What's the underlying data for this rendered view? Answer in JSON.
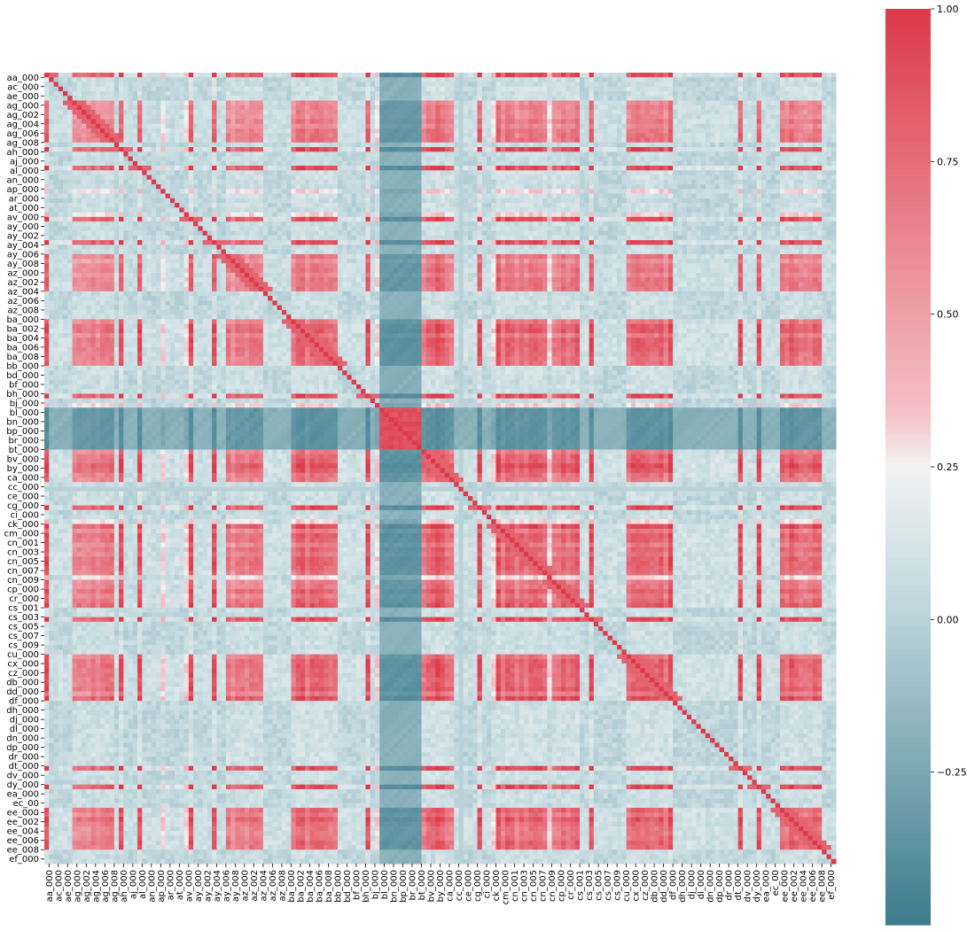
{
  "chart_data": {
    "type": "heatmap",
    "title": "",
    "xlabel": "",
    "ylabel": "",
    "description_free": true,
    "matrix_kind": "correlation",
    "n_features": 170,
    "row_tick_labels": [
      "aa_000",
      "ac_000",
      "ae_000",
      "ag_000",
      "ag_002",
      "ag_004",
      "ag_006",
      "ag_008",
      "ah_000",
      "aj_000",
      "al_000",
      "an_000",
      "ap_000",
      "ar_000",
      "at_000",
      "av_000",
      "ay_000",
      "ay_002",
      "ay_004",
      "ay_006",
      "ay_008",
      "az_000",
      "az_002",
      "az_004",
      "az_006",
      "az_008",
      "ba_000",
      "ba_002",
      "ba_004",
      "ba_006",
      "ba_008",
      "bb_000",
      "bd_000",
      "bf_000",
      "bh_000",
      "bj_000",
      "bl_000",
      "bn_000",
      "bp_000",
      "br_000",
      "bt_000",
      "bv_000",
      "by_000",
      "ca_000",
      "cc_000",
      "ce_000",
      "cg_000",
      "ci_000",
      "ck_000",
      "cm_000",
      "cn_001",
      "cn_003",
      "cn_005",
      "cn_007",
      "cn_009",
      "cp_000",
      "cr_000",
      "cs_001",
      "cs_003",
      "cs_005",
      "cs_007",
      "cs_009",
      "cu_000",
      "cx_000",
      "cz_000",
      "db_000",
      "dd_000",
      "df_000",
      "dh_000",
      "dj_000",
      "dl_000",
      "dn_000",
      "dp_000",
      "dr_000",
      "dt_000",
      "dv_000",
      "dy_000",
      "ea_000",
      "ec_00",
      "ee_000",
      "ee_002",
      "ee_004",
      "ee_006",
      "ee_008",
      "ef_000"
    ],
    "col_tick_labels": [
      "aa_000",
      "ac_000",
      "ae_000",
      "ag_000",
      "ag_002",
      "ag_004",
      "ag_006",
      "ag_008",
      "ah_000",
      "aj_000",
      "al_000",
      "an_000",
      "ap_000",
      "ar_000",
      "at_000",
      "av_000",
      "ay_000",
      "ay_002",
      "ay_004",
      "ay_006",
      "ay_008",
      "az_000",
      "az_002",
      "az_004",
      "az_006",
      "az_008",
      "ba_000",
      "ba_002",
      "ba_004",
      "ba_006",
      "ba_008",
      "bb_000",
      "bd_000",
      "bf_000",
      "bh_000",
      "bj_000",
      "bl_000",
      "bn_000",
      "bp_000",
      "br_000",
      "bt_000",
      "bv_000",
      "by_000",
      "ca_000",
      "cc_000",
      "ce_000",
      "cg_000",
      "ci_000",
      "ck_000",
      "cm_000",
      "cn_001",
      "cn_003",
      "cn_005",
      "cn_007",
      "cn_009",
      "cp_000",
      "cr_000",
      "cs_001",
      "cs_003",
      "cs_005",
      "cs_007",
      "cs_009",
      "cu_000",
      "cx_000",
      "cz_000",
      "db_000",
      "dd_000",
      "df_000",
      "dh_000",
      "dj_000",
      "dl_000",
      "dn_000",
      "dp_000",
      "dr_000",
      "dt_000",
      "dv_000",
      "dy_000",
      "ea_000",
      "ec_00",
      "ee_000",
      "ee_002",
      "ee_004",
      "ee_006",
      "ee_008",
      "ef_000"
    ],
    "colorbar": {
      "ticks": [
        1.0,
        0.75,
        0.5,
        0.25,
        0.0,
        -0.25
      ],
      "tick_labels": [
        "1.00",
        "0.75",
        "0.50",
        "0.25",
        "0.00",
        "−0.25"
      ],
      "vmin": -0.5,
      "vmax": 1.0
    },
    "colormap": {
      "low": "#3d7b8c",
      "mid_low": "#c9dde2",
      "center": "#f2f2f2",
      "mid_high": "#f4c0c6",
      "high": "#dc3a4a",
      "center_value": 0.25
    },
    "grid": false,
    "legend": "colorbar-right"
  }
}
